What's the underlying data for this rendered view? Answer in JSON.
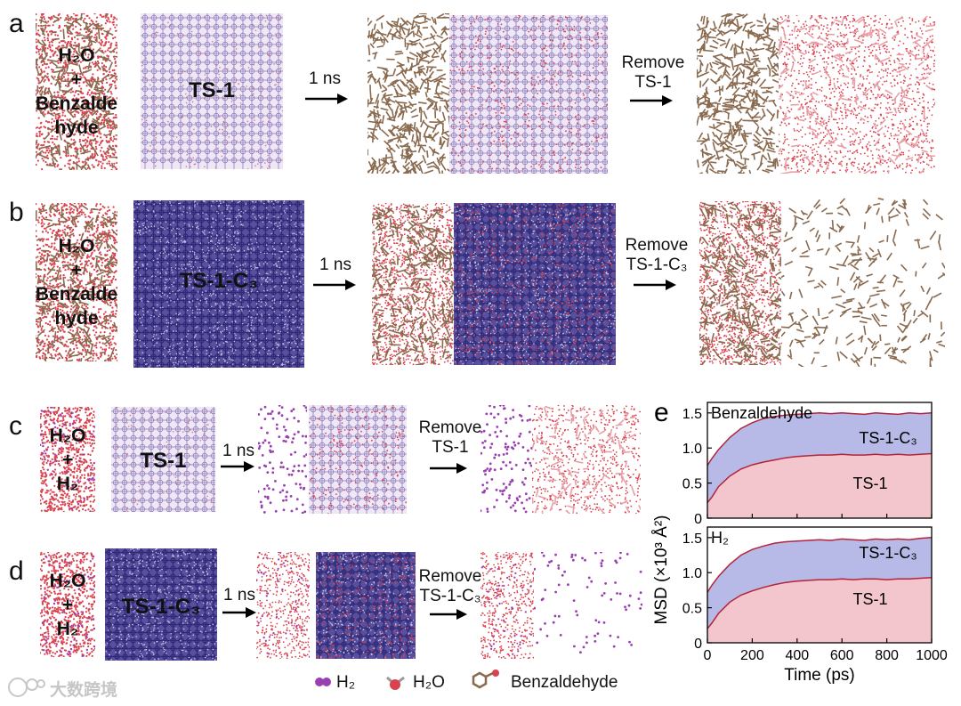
{
  "panels": {
    "a": {
      "letter": "a",
      "solvent": [
        "H₂O",
        "+",
        "Benzalde",
        "hyde"
      ],
      "zeolite": "TS-1",
      "time": "1 ns",
      "remove": [
        "Remove",
        "TS-1"
      ]
    },
    "b": {
      "letter": "b",
      "solvent": [
        "H₂O",
        "+",
        "Benzalde",
        "hyde"
      ],
      "zeolite": "TS-1-C₃",
      "time": "1 ns",
      "remove": [
        "Remove",
        "TS-1-C₃"
      ]
    },
    "c": {
      "letter": "c",
      "solvent": [
        "H₂O",
        "+",
        "H₂"
      ],
      "zeolite": "TS-1",
      "time": "1 ns",
      "remove": [
        "Remove",
        "TS-1"
      ]
    },
    "d": {
      "letter": "d",
      "solvent": [
        "H₂O",
        "+",
        "H₂"
      ],
      "zeolite": "TS-1-C₃",
      "time": "1 ns",
      "remove": [
        "Remove",
        "TS-1-C₃"
      ]
    }
  },
  "legend": {
    "h2": "H₂",
    "h2o": "H₂O",
    "benz": "Benzaldehyde"
  },
  "watermark": "大数跨境",
  "colors": {
    "water": "#d9434f",
    "benz": "#8a6a4e",
    "h2": "#9a3fb0",
    "framework": "#4b3f9a",
    "ts1_fill": "#f2c6cc",
    "c3_fill": "#b7b9e6",
    "line": "#b4243a"
  },
  "chart_data": {
    "type": "area",
    "letter": "e",
    "xlabel": "Time (ps)",
    "ylabel": "MSD (×10³ Å²)",
    "xlim": [
      0,
      1000
    ],
    "ylim": [
      0,
      1.65
    ],
    "xticks": [
      0,
      200,
      400,
      600,
      800,
      1000
    ],
    "yticks": [
      0,
      0.5,
      1.0,
      1.5
    ],
    "panels": [
      {
        "title": "Benzaldehyde",
        "series": [
          {
            "name": "TS-1-C₃",
            "x": [
              0,
              20,
              50,
              100,
              150,
              200,
              250,
              300,
              350,
              400,
              450,
              500,
              550,
              600,
              650,
              700,
              750,
              800,
              850,
              900,
              950,
              1000
            ],
            "y": [
              0.75,
              0.85,
              0.98,
              1.15,
              1.28,
              1.36,
              1.42,
              1.45,
              1.47,
              1.48,
              1.49,
              1.5,
              1.49,
              1.5,
              1.49,
              1.48,
              1.5,
              1.49,
              1.48,
              1.5,
              1.49,
              1.5
            ]
          },
          {
            "name": "TS-1",
            "x": [
              0,
              20,
              50,
              100,
              150,
              200,
              250,
              300,
              350,
              400,
              450,
              500,
              550,
              600,
              650,
              700,
              750,
              800,
              850,
              900,
              950,
              1000
            ],
            "y": [
              0.22,
              0.3,
              0.45,
              0.6,
              0.7,
              0.76,
              0.8,
              0.83,
              0.86,
              0.88,
              0.89,
              0.9,
              0.9,
              0.91,
              0.9,
              0.9,
              0.91,
              0.9,
              0.91,
              0.9,
              0.91,
              0.92
            ]
          }
        ]
      },
      {
        "title": "H₂",
        "series": [
          {
            "name": "TS-1-C₃",
            "x": [
              0,
              20,
              50,
              100,
              150,
              200,
              250,
              300,
              350,
              400,
              450,
              500,
              550,
              600,
              650,
              700,
              750,
              800,
              850,
              900,
              950,
              1000
            ],
            "y": [
              0.72,
              0.82,
              0.95,
              1.12,
              1.25,
              1.33,
              1.38,
              1.42,
              1.44,
              1.45,
              1.46,
              1.47,
              1.46,
              1.48,
              1.47,
              1.46,
              1.48,
              1.47,
              1.48,
              1.47,
              1.49,
              1.5
            ]
          },
          {
            "name": "TS-1",
            "x": [
              0,
              20,
              50,
              100,
              150,
              200,
              250,
              300,
              350,
              400,
              450,
              500,
              550,
              600,
              650,
              700,
              750,
              800,
              850,
              900,
              950,
              1000
            ],
            "y": [
              0.2,
              0.28,
              0.42,
              0.58,
              0.68,
              0.74,
              0.79,
              0.83,
              0.86,
              0.88,
              0.89,
              0.9,
              0.9,
              0.91,
              0.9,
              0.91,
              0.91,
              0.9,
              0.91,
              0.91,
              0.92,
              0.93
            ]
          }
        ]
      }
    ]
  }
}
